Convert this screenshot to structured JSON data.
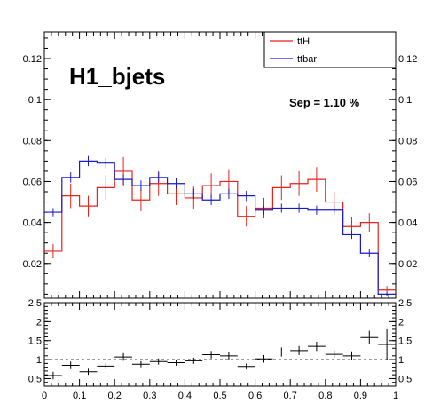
{
  "chart_data": [
    {
      "type": "line",
      "title": "H1_bjets",
      "annotation": "Sep = 1.10 %",
      "xlim": [
        0,
        1
      ],
      "ylim": [
        0.003,
        0.133
      ],
      "x_ticks": [
        "0",
        "0.1",
        "0.2",
        "0.3",
        "0.4",
        "0.5",
        "0.6",
        "0.7",
        "0.8",
        "0.9",
        "1"
      ],
      "y_ticks": [
        "0.02",
        "0.04",
        "0.06",
        "0.08",
        "0.1",
        "0.12"
      ],
      "legend": {
        "placement": "top-right",
        "entries": [
          "ttH",
          "ttbar"
        ]
      },
      "bin_edges": [
        0,
        0.05,
        0.1,
        0.15,
        0.2,
        0.25,
        0.3,
        0.35,
        0.4,
        0.45,
        0.5,
        0.55,
        0.6,
        0.65,
        0.7,
        0.75,
        0.8,
        0.85,
        0.9,
        0.95,
        1
      ],
      "series": [
        {
          "name": "ttH",
          "color": "#e8211b",
          "values": [
            0.026,
            0.053,
            0.048,
            0.057,
            0.065,
            0.051,
            0.059,
            0.054,
            0.052,
            0.058,
            0.06,
            0.043,
            0.047,
            0.057,
            0.059,
            0.061,
            0.05,
            0.038,
            0.04,
            0.007
          ],
          "errors": [
            0.0035,
            0.006,
            0.005,
            0.006,
            0.007,
            0.0055,
            0.006,
            0.0055,
            0.0055,
            0.006,
            0.006,
            0.005,
            0.005,
            0.006,
            0.006,
            0.006,
            0.005,
            0.0045,
            0.0045,
            0.002
          ]
        },
        {
          "name": "ttbar",
          "color": "#1a1acc",
          "values": [
            0.045,
            0.062,
            0.07,
            0.069,
            0.061,
            0.058,
            0.062,
            0.059,
            0.054,
            0.051,
            0.054,
            0.053,
            0.046,
            0.047,
            0.047,
            0.046,
            0.046,
            0.034,
            0.025,
            0.005
          ],
          "errors": [
            0.002,
            0.0025,
            0.0025,
            0.0025,
            0.0025,
            0.0025,
            0.0025,
            0.0025,
            0.0025,
            0.0025,
            0.0025,
            0.0025,
            0.0022,
            0.0022,
            0.0022,
            0.0022,
            0.0022,
            0.002,
            0.0018,
            0.001
          ]
        }
      ]
    },
    {
      "type": "scatter",
      "xlim": [
        0,
        1
      ],
      "ylim": [
        0.3,
        2.5
      ],
      "x_ticks": [
        "0",
        "0.1",
        "0.2",
        "0.3",
        "0.4",
        "0.5",
        "0.6",
        "0.7",
        "0.8",
        "0.9",
        "1"
      ],
      "y_ticks": [
        "0.5",
        "1",
        "1.5",
        "2",
        "2.5"
      ],
      "reference_line": 1,
      "ratio": [
        0.58,
        0.85,
        0.68,
        0.83,
        1.07,
        0.88,
        0.95,
        0.92,
        0.97,
        1.13,
        1.1,
        0.82,
        1.02,
        1.2,
        1.24,
        1.35,
        1.14,
        1.1,
        1.58,
        1.4
      ],
      "ratio_errors": [
        0.1,
        0.1,
        0.08,
        0.08,
        0.1,
        0.08,
        0.08,
        0.08,
        0.08,
        0.1,
        0.1,
        0.08,
        0.1,
        0.12,
        0.12,
        0.12,
        0.1,
        0.12,
        0.18,
        0.4
      ]
    }
  ]
}
